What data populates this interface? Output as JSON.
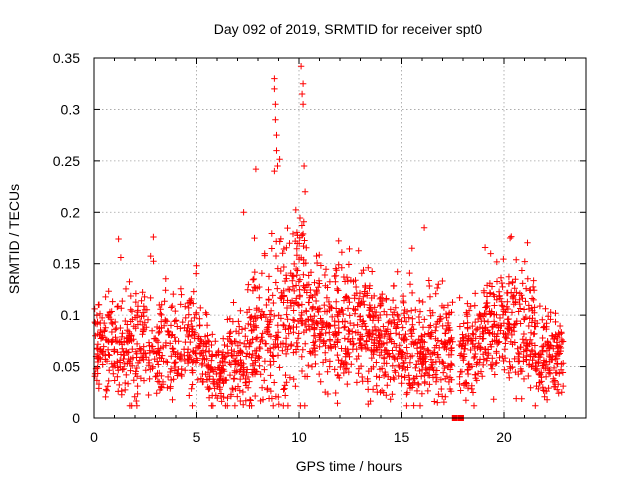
{
  "chart_data": {
    "type": "scatter",
    "title": "Day 092 of 2019, SRMTID for receiver spt0",
    "xlabel": "GPS time / hours",
    "ylabel": "SRMTID / TECUs",
    "xlim": [
      0,
      24
    ],
    "ylim": [
      0,
      0.35
    ],
    "x_ticks": [
      0,
      5,
      10,
      15,
      20
    ],
    "x_tick_labels": [
      "0",
      "5",
      "10",
      "15",
      "20"
    ],
    "y_ticks": [
      0,
      0.05,
      0.1,
      0.15,
      0.2,
      0.25,
      0.3,
      0.35
    ],
    "y_tick_labels": [
      "0",
      "0.05",
      "0.1",
      "0.15",
      "0.2",
      "0.25",
      "0.3",
      "0.35"
    ],
    "grid": true,
    "marker": "plus",
    "color": "#ff0000",
    "data_range_hours": [
      0,
      22.9
    ],
    "gap_markers_x": [
      17.6,
      17.9
    ],
    "series": [
      {
        "name": "SRMTID",
        "notable_points": [
          {
            "x": 8.8,
            "y": 0.33
          },
          {
            "x": 8.8,
            "y": 0.32
          },
          {
            "x": 8.85,
            "y": 0.305
          },
          {
            "x": 8.85,
            "y": 0.29
          },
          {
            "x": 8.9,
            "y": 0.275
          },
          {
            "x": 8.9,
            "y": 0.26
          },
          {
            "x": 8.95,
            "y": 0.245
          },
          {
            "x": 8.8,
            "y": 0.24
          },
          {
            "x": 10.1,
            "y": 0.342
          },
          {
            "x": 10.2,
            "y": 0.325
          },
          {
            "x": 10.15,
            "y": 0.315
          },
          {
            "x": 10.2,
            "y": 0.305
          },
          {
            "x": 10.25,
            "y": 0.245
          },
          {
            "x": 10.3,
            "y": 0.22
          },
          {
            "x": 7.9,
            "y": 0.242
          },
          {
            "x": 7.3,
            "y": 0.2
          },
          {
            "x": 1.2,
            "y": 0.174
          },
          {
            "x": 2.9,
            "y": 0.176
          },
          {
            "x": 16.1,
            "y": 0.185
          },
          {
            "x": 20.3,
            "y": 0.175
          },
          {
            "x": 5.0,
            "y": 0.148
          },
          {
            "x": 15.5,
            "y": 0.165
          }
        ],
        "segments": [
          {
            "x0": 0.0,
            "x1": 1.0,
            "base": 0.07,
            "spread": 0.022,
            "n": 90
          },
          {
            "x0": 1.0,
            "x1": 3.0,
            "base": 0.07,
            "spread": 0.025,
            "n": 170
          },
          {
            "x0": 3.0,
            "x1": 5.0,
            "base": 0.07,
            "spread": 0.025,
            "n": 170
          },
          {
            "x0": 5.0,
            "x1": 5.5,
            "base": 0.06,
            "spread": 0.02,
            "n": 40
          },
          {
            "x0": 5.5,
            "x1": 6.5,
            "base": 0.045,
            "spread": 0.02,
            "n": 90
          },
          {
            "x0": 6.5,
            "x1": 7.5,
            "base": 0.055,
            "spread": 0.025,
            "n": 90
          },
          {
            "x0": 7.5,
            "x1": 8.5,
            "base": 0.075,
            "spread": 0.035,
            "n": 100
          },
          {
            "x0": 8.5,
            "x1": 9.5,
            "base": 0.09,
            "spread": 0.045,
            "n": 100
          },
          {
            "x0": 9.5,
            "x1": 10.5,
            "base": 0.105,
            "spread": 0.045,
            "n": 110
          },
          {
            "x0": 10.5,
            "x1": 12.0,
            "base": 0.09,
            "spread": 0.03,
            "n": 150
          },
          {
            "x0": 12.0,
            "x1": 13.5,
            "base": 0.09,
            "spread": 0.03,
            "n": 150
          },
          {
            "x0": 13.5,
            "x1": 15.0,
            "base": 0.075,
            "spread": 0.025,
            "n": 150
          },
          {
            "x0": 15.0,
            "x1": 16.5,
            "base": 0.065,
            "spread": 0.025,
            "n": 150
          },
          {
            "x0": 16.5,
            "x1": 17.5,
            "base": 0.07,
            "spread": 0.025,
            "n": 100
          },
          {
            "x0": 17.8,
            "x1": 19.0,
            "base": 0.07,
            "spread": 0.025,
            "n": 110
          },
          {
            "x0": 19.0,
            "x1": 20.5,
            "base": 0.09,
            "spread": 0.03,
            "n": 150
          },
          {
            "x0": 20.5,
            "x1": 21.5,
            "base": 0.085,
            "spread": 0.03,
            "n": 100
          },
          {
            "x0": 21.5,
            "x1": 22.9,
            "base": 0.06,
            "spread": 0.02,
            "n": 140
          }
        ]
      }
    ]
  }
}
